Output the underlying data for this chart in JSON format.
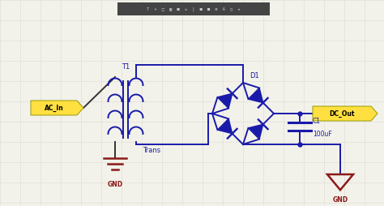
{
  "bg_color": "#f2f2ea",
  "grid_color": "#e0e0d8",
  "wire_color": "#1a1aaa",
  "gnd_color": "#8B1a1a",
  "label_bg": "#FFE040",
  "toolbar_bg": "#444444",
  "ac_in_label": "AC_In",
  "dc_out_label": "DC_Out",
  "trans_label": "Trans",
  "t1_label": "T1",
  "d1_label": "D1",
  "c1_label": "C1",
  "c1_value": "100uF",
  "gnd_label": "GND",
  "figw": 4.74,
  "figh": 2.54,
  "dpi": 100
}
